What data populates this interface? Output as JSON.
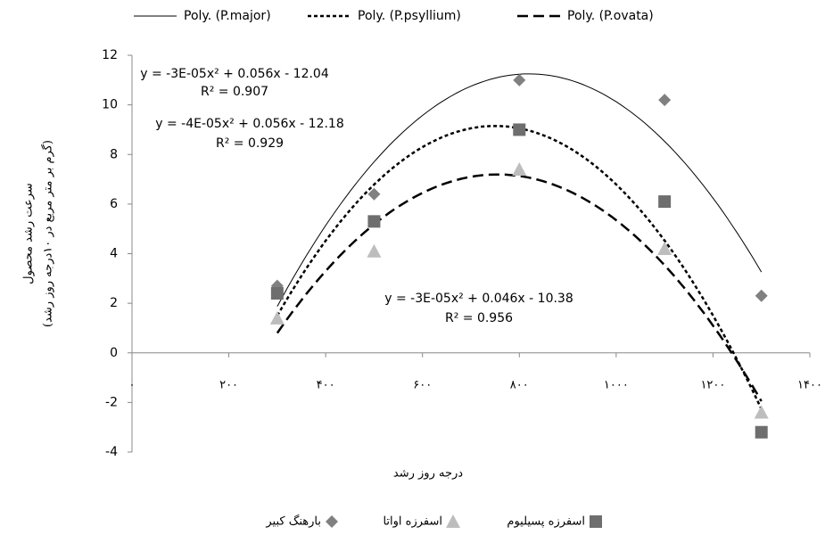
{
  "chart_data": {
    "type": "scatter",
    "x_label": "درجه روز رشد",
    "y_label": [
      "سرعت رشد محصول",
      "(گرم بر متر مربع در ۱۰درجه روز رشد)"
    ],
    "x": [
      300,
      500,
      800,
      1100,
      1300
    ],
    "series": [
      {
        "name": "بارهنگ کبیر",
        "marker": "diamond",
        "color": "#808080",
        "values": [
          2.7,
          6.4,
          11.0,
          10.2,
          2.3
        ],
        "trendline_name": "Poly. (P.major)",
        "trendline_style": "solid"
      },
      {
        "name": "اسفرزه پسیلیوم",
        "marker": "square",
        "color": "#6e6e6e",
        "values": [
          2.4,
          5.3,
          9.0,
          6.1,
          -3.2
        ],
        "trendline_name": "Poly. (P.psyllium)",
        "trendline_style": "dotted"
      },
      {
        "name": "اسفرزه اواتا",
        "marker": "triangle",
        "color": "#bdbdbd",
        "values": [
          1.4,
          4.1,
          7.4,
          4.2,
          -2.4
        ],
        "trendline_name": "Poly. (P.ovata)",
        "trendline_style": "dashed"
      }
    ],
    "annotations": [
      "y = -3E-05x² + 0.056x - 12.04",
      "R² = 0.907",
      "y = -4E-05x² + 0.056x - 12.18",
      "R² = 0.929",
      "y = -3E-05x² + 0.046x - 10.38",
      "R² = 0.956"
    ],
    "xlim": [
      0,
      1400
    ],
    "xticks": [
      {
        "value": 0,
        "label": "۰"
      },
      {
        "value": 200,
        "label": "۲۰۰"
      },
      {
        "value": 400,
        "label": "۴۰۰"
      },
      {
        "value": 600,
        "label": "۶۰۰"
      },
      {
        "value": 800,
        "label": "۸۰۰"
      },
      {
        "value": 1000,
        "label": "۱۰۰۰"
      },
      {
        "value": 1200,
        "label": "۱۲۰۰"
      },
      {
        "value": 1400,
        "label": "۱۴۰۰"
      }
    ],
    "ylim": [
      -4,
      12
    ],
    "yticks": [
      -4,
      -2,
      0,
      2,
      4,
      6,
      8,
      10,
      12
    ],
    "grid": false
  }
}
